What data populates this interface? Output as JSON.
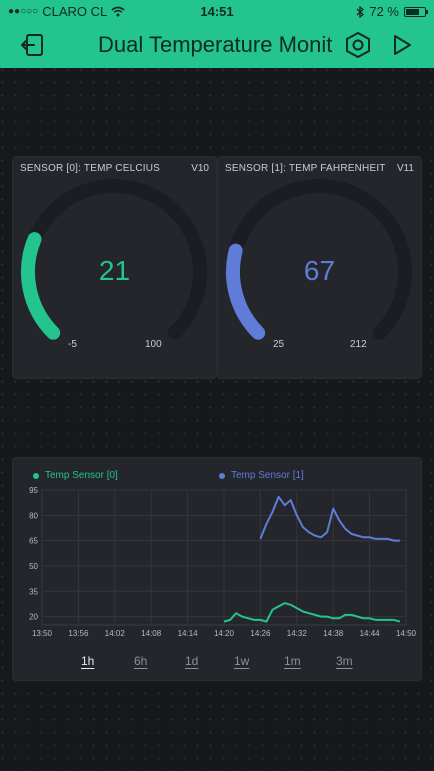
{
  "status_bar": {
    "carrier": "CLARO CL",
    "time": "14:51",
    "battery": "72 %",
    "battery_level": 0.72
  },
  "header": {
    "title": "Dual Temperature Monit",
    "colors": {
      "accent": "#23c48e"
    }
  },
  "gauges": [
    {
      "title": "SENSOR [0]: TEMP CELCIUS",
      "pin": "V10",
      "value": "21",
      "min": "-5",
      "max": "100",
      "fraction": 0.25,
      "color": "#23c48e"
    },
    {
      "title": "SENSOR [1]: TEMP FAHRENHEIT",
      "pin": "V11",
      "value": "67",
      "min": "25",
      "max": "212",
      "fraction": 0.22,
      "color": "#5f7cd8"
    }
  ],
  "chart": {
    "legend": [
      {
        "name": "Temp Sensor [0]",
        "color": "#23c48e"
      },
      {
        "name": "Temp Sensor [1]",
        "color": "#5f7cd8"
      }
    ],
    "ranges": [
      {
        "label": "1h",
        "active": true
      },
      {
        "label": "6h",
        "active": false
      },
      {
        "label": "1d",
        "active": false
      },
      {
        "label": "1w",
        "active": false
      },
      {
        "label": "1m",
        "active": false
      },
      {
        "label": "3m",
        "active": false
      }
    ]
  },
  "chart_data": {
    "type": "line",
    "x_ticks": [
      "13:50",
      "13:56",
      "14:02",
      "14:08",
      "14:14",
      "14:20",
      "14:26",
      "14:32",
      "14:38",
      "14:44",
      "14:50"
    ],
    "y_ticks": [
      20,
      35,
      50,
      65,
      80,
      95
    ],
    "ylim": [
      15,
      95
    ],
    "grid": true,
    "legend_position": "top",
    "series": [
      {
        "name": "Temp Sensor [0]",
        "color": "#23c48e",
        "points": [
          [
            "14:20",
            17
          ],
          [
            "14:21",
            18
          ],
          [
            "14:22",
            22
          ],
          [
            "14:23",
            20
          ],
          [
            "14:24",
            19
          ],
          [
            "14:25",
            18
          ],
          [
            "14:26",
            18
          ],
          [
            "14:27",
            17
          ],
          [
            "14:28",
            24
          ],
          [
            "14:29",
            26
          ],
          [
            "14:30",
            28
          ],
          [
            "14:31",
            27
          ],
          [
            "14:32",
            25
          ],
          [
            "14:33",
            23
          ],
          [
            "14:34",
            22
          ],
          [
            "14:35",
            21
          ],
          [
            "14:36",
            20
          ],
          [
            "14:37",
            20
          ],
          [
            "14:38",
            19
          ],
          [
            "14:39",
            19
          ],
          [
            "14:40",
            21
          ],
          [
            "14:41",
            21
          ],
          [
            "14:42",
            20
          ],
          [
            "14:43",
            19
          ],
          [
            "14:44",
            19
          ],
          [
            "14:45",
            18
          ],
          [
            "14:46",
            18
          ],
          [
            "14:47",
            18
          ],
          [
            "14:48",
            18
          ],
          [
            "14:49",
            17
          ]
        ]
      },
      {
        "name": "Temp Sensor [1]",
        "color": "#5f7cd8",
        "points": [
          [
            "14:26",
            66
          ],
          [
            "14:27",
            75
          ],
          [
            "14:28",
            82
          ],
          [
            "14:29",
            91
          ],
          [
            "14:30",
            86
          ],
          [
            "14:31",
            89
          ],
          [
            "14:32",
            80
          ],
          [
            "14:33",
            73
          ],
          [
            "14:34",
            70
          ],
          [
            "14:35",
            68
          ],
          [
            "14:36",
            67
          ],
          [
            "14:37",
            70
          ],
          [
            "14:38",
            84
          ],
          [
            "14:39",
            77
          ],
          [
            "14:40",
            72
          ],
          [
            "14:41",
            69
          ],
          [
            "14:42",
            68
          ],
          [
            "14:43",
            67
          ],
          [
            "14:44",
            67
          ],
          [
            "14:45",
            66
          ],
          [
            "14:46",
            66
          ],
          [
            "14:47",
            66
          ],
          [
            "14:48",
            65
          ],
          [
            "14:49",
            65
          ]
        ]
      }
    ]
  }
}
